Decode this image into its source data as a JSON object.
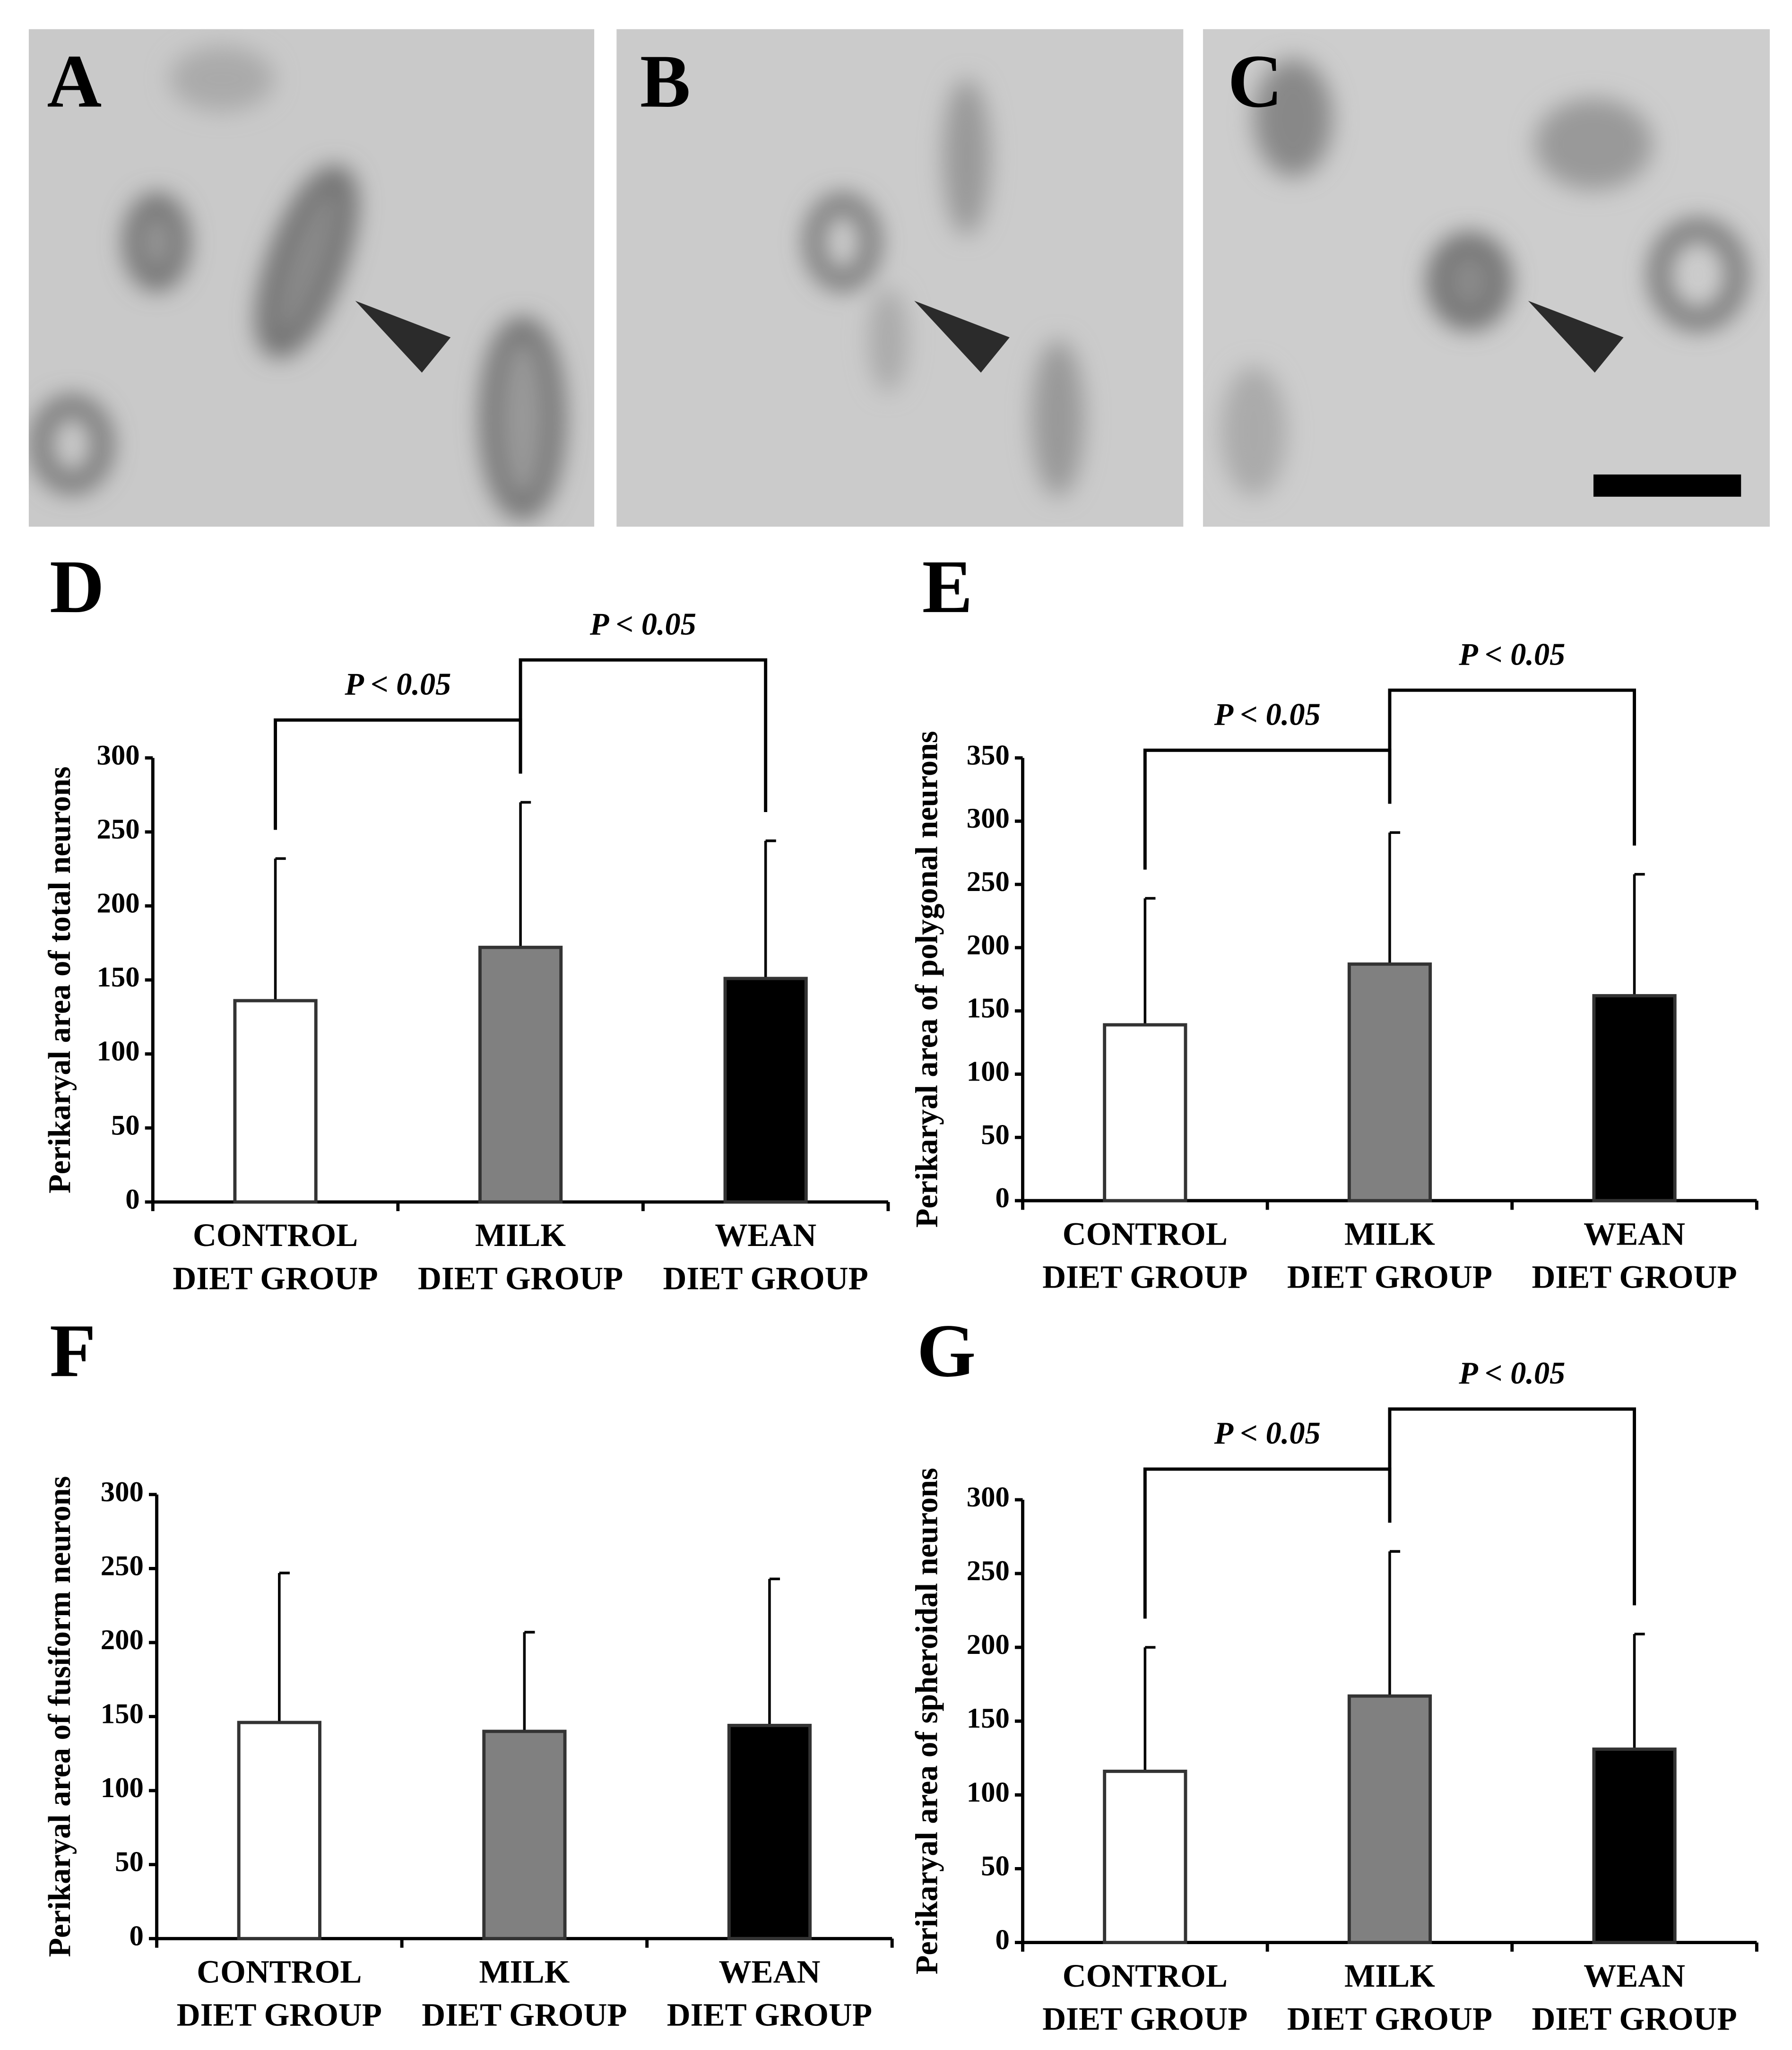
{
  "panels": [
    {
      "label": "A"
    },
    {
      "label": "B"
    },
    {
      "label": "C"
    }
  ],
  "chart_data": [
    {
      "type": "bar",
      "panel_label": "D",
      "y_label": "Perikaryal area of total neurons",
      "categories": [
        [
          "CONTROL",
          "DIET GROUP"
        ],
        [
          "MILK",
          "DIET GROUP"
        ],
        [
          "WEAN",
          "DIET GROUP"
        ]
      ],
      "values": [
        136,
        172,
        151
      ],
      "errors": [
        96,
        98,
        93
      ],
      "colors": [
        "#ffffff",
        "#808080",
        "#000000"
      ],
      "ylim": [
        0,
        300
      ],
      "yticks": [
        0,
        50,
        100,
        150,
        200,
        250,
        300
      ],
      "comparisons": [
        {
          "text": "P < 0.05",
          "groups": [
            0,
            1
          ]
        },
        {
          "text": "P < 0.05",
          "groups": [
            1,
            2
          ]
        }
      ]
    },
    {
      "type": "bar",
      "panel_label": "E",
      "y_label": "Perikaryal area of polygonal neurons",
      "categories": [
        [
          "CONTROL",
          "DIET GROUP"
        ],
        [
          "MILK",
          "DIET GROUP"
        ],
        [
          "WEAN",
          "DIET GROUP"
        ]
      ],
      "values": [
        139,
        187,
        162
      ],
      "errors": [
        100,
        104,
        96
      ],
      "colors": [
        "#ffffff",
        "#808080",
        "#000000"
      ],
      "ylim": [
        0,
        350
      ],
      "yticks": [
        0,
        50,
        100,
        150,
        200,
        250,
        300,
        350
      ],
      "comparisons": [
        {
          "text": "P < 0.05",
          "groups": [
            0,
            1
          ]
        },
        {
          "text": "P < 0.05",
          "groups": [
            1,
            2
          ]
        }
      ]
    },
    {
      "type": "bar",
      "panel_label": "F",
      "y_label": "Perikaryal area of fusiform neurons",
      "categories": [
        [
          "CONTROL",
          "DIET GROUP"
        ],
        [
          "MILK",
          "DIET GROUP"
        ],
        [
          "WEAN",
          "DIET GROUP"
        ]
      ],
      "values": [
        146,
        140,
        144
      ],
      "errors": [
        101,
        67,
        99
      ],
      "colors": [
        "#ffffff",
        "#808080",
        "#000000"
      ],
      "ylim": [
        0,
        300
      ],
      "yticks": [
        0,
        50,
        100,
        150,
        200,
        250,
        300
      ],
      "comparisons": []
    },
    {
      "type": "bar",
      "panel_label": "G",
      "y_label": "Perikaryal area of spheroidal neurons",
      "categories": [
        [
          "CONTROL",
          "DIET GROUP"
        ],
        [
          "MILK",
          "DIET GROUP"
        ],
        [
          "WEAN",
          "DIET GROUP"
        ]
      ],
      "values": [
        116,
        167,
        131
      ],
      "errors": [
        84,
        98,
        78
      ],
      "colors": [
        "#ffffff",
        "#808080",
        "#000000"
      ],
      "ylim": [
        0,
        300
      ],
      "yticks": [
        0,
        50,
        100,
        150,
        200,
        250,
        300
      ],
      "comparisons": [
        {
          "text": "P < 0.05",
          "groups": [
            0,
            1
          ]
        },
        {
          "text": "P < 0.05",
          "groups": [
            1,
            2
          ]
        }
      ]
    }
  ]
}
